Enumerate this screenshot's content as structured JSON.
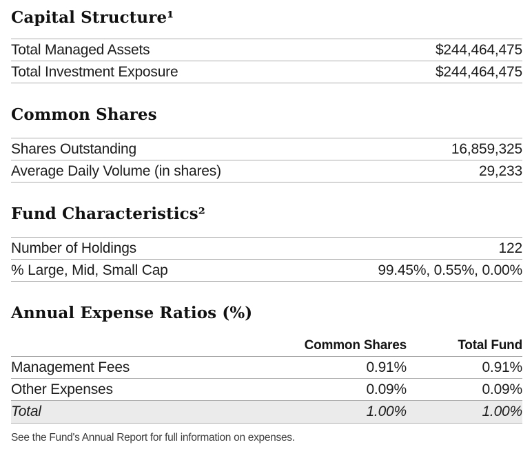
{
  "sections": {
    "capital_structure": {
      "title": "Capital Structure¹",
      "rows": [
        {
          "label": "Total Managed Assets",
          "value": "$244,464,475"
        },
        {
          "label": "Total Investment Exposure",
          "value": "$244,464,475"
        }
      ]
    },
    "common_shares": {
      "title": "Common Shares",
      "rows": [
        {
          "label": "Shares Outstanding",
          "value": "16,859,325"
        },
        {
          "label": "Average Daily Volume (in shares)",
          "value": "29,233"
        }
      ]
    },
    "fund_characteristics": {
      "title": "Fund Characteristics²",
      "rows": [
        {
          "label": "Number of Holdings",
          "value": "122"
        },
        {
          "label": "% Large, Mid, Small Cap",
          "value": "99.45%, 0.55%, 0.00%"
        }
      ]
    },
    "annual_expense_ratios": {
      "title": "Annual Expense Ratios (%)",
      "columns": {
        "common_shares": "Common Shares",
        "total_fund": "Total Fund"
      },
      "rows": [
        {
          "label": "Management Fees",
          "common_shares": "0.91%",
          "total_fund": "0.91%"
        },
        {
          "label": "Other Expenses",
          "common_shares": "0.09%",
          "total_fund": "0.09%"
        },
        {
          "label": "Total",
          "common_shares": "1.00%",
          "total_fund": "1.00%"
        }
      ],
      "footnote": "See the Fund's Annual Report for full information on expenses."
    }
  },
  "colors": {
    "rule": "#ababab",
    "header_rule": "#979797",
    "total_row_background": "#ebebeb",
    "heading_text": "#111111",
    "body_text": "#1c1c1c",
    "footnote_text": "#3c3c3c"
  }
}
